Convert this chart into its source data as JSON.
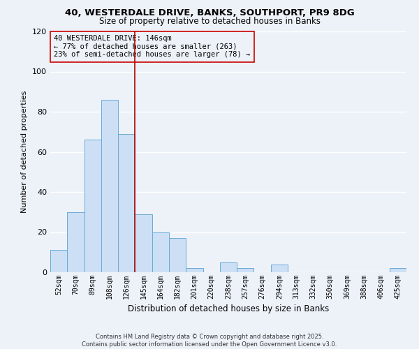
{
  "title_line1": "40, WESTERDALE DRIVE, BANKS, SOUTHPORT, PR9 8DG",
  "title_line2": "Size of property relative to detached houses in Banks",
  "xlabel": "Distribution of detached houses by size in Banks",
  "ylabel": "Number of detached properties",
  "bar_labels": [
    "52sqm",
    "70sqm",
    "89sqm",
    "108sqm",
    "126sqm",
    "145sqm",
    "164sqm",
    "182sqm",
    "201sqm",
    "220sqm",
    "238sqm",
    "257sqm",
    "276sqm",
    "294sqm",
    "313sqm",
    "332sqm",
    "350sqm",
    "369sqm",
    "388sqm",
    "406sqm",
    "425sqm"
  ],
  "bar_values": [
    11,
    30,
    66,
    86,
    69,
    29,
    20,
    17,
    2,
    0,
    5,
    2,
    0,
    4,
    0,
    0,
    0,
    0,
    0,
    0,
    2
  ],
  "bar_color": "#ccdff5",
  "bar_edge_color": "#6aabd4",
  "ref_line_color": "#aa0000",
  "ylim": [
    0,
    120
  ],
  "yticks": [
    0,
    20,
    40,
    60,
    80,
    100,
    120
  ],
  "annotation_title": "40 WESTERDALE DRIVE: 146sqm",
  "annotation_line1": "← 77% of detached houses are smaller (263)",
  "annotation_line2": "23% of semi-detached houses are larger (78) →",
  "annotation_box_edge": "#cc0000",
  "background_color": "#edf2f9",
  "grid_color": "#ffffff",
  "footer_line1": "Contains HM Land Registry data © Crown copyright and database right 2025.",
  "footer_line2": "Contains public sector information licensed under the Open Government Licence v3.0."
}
